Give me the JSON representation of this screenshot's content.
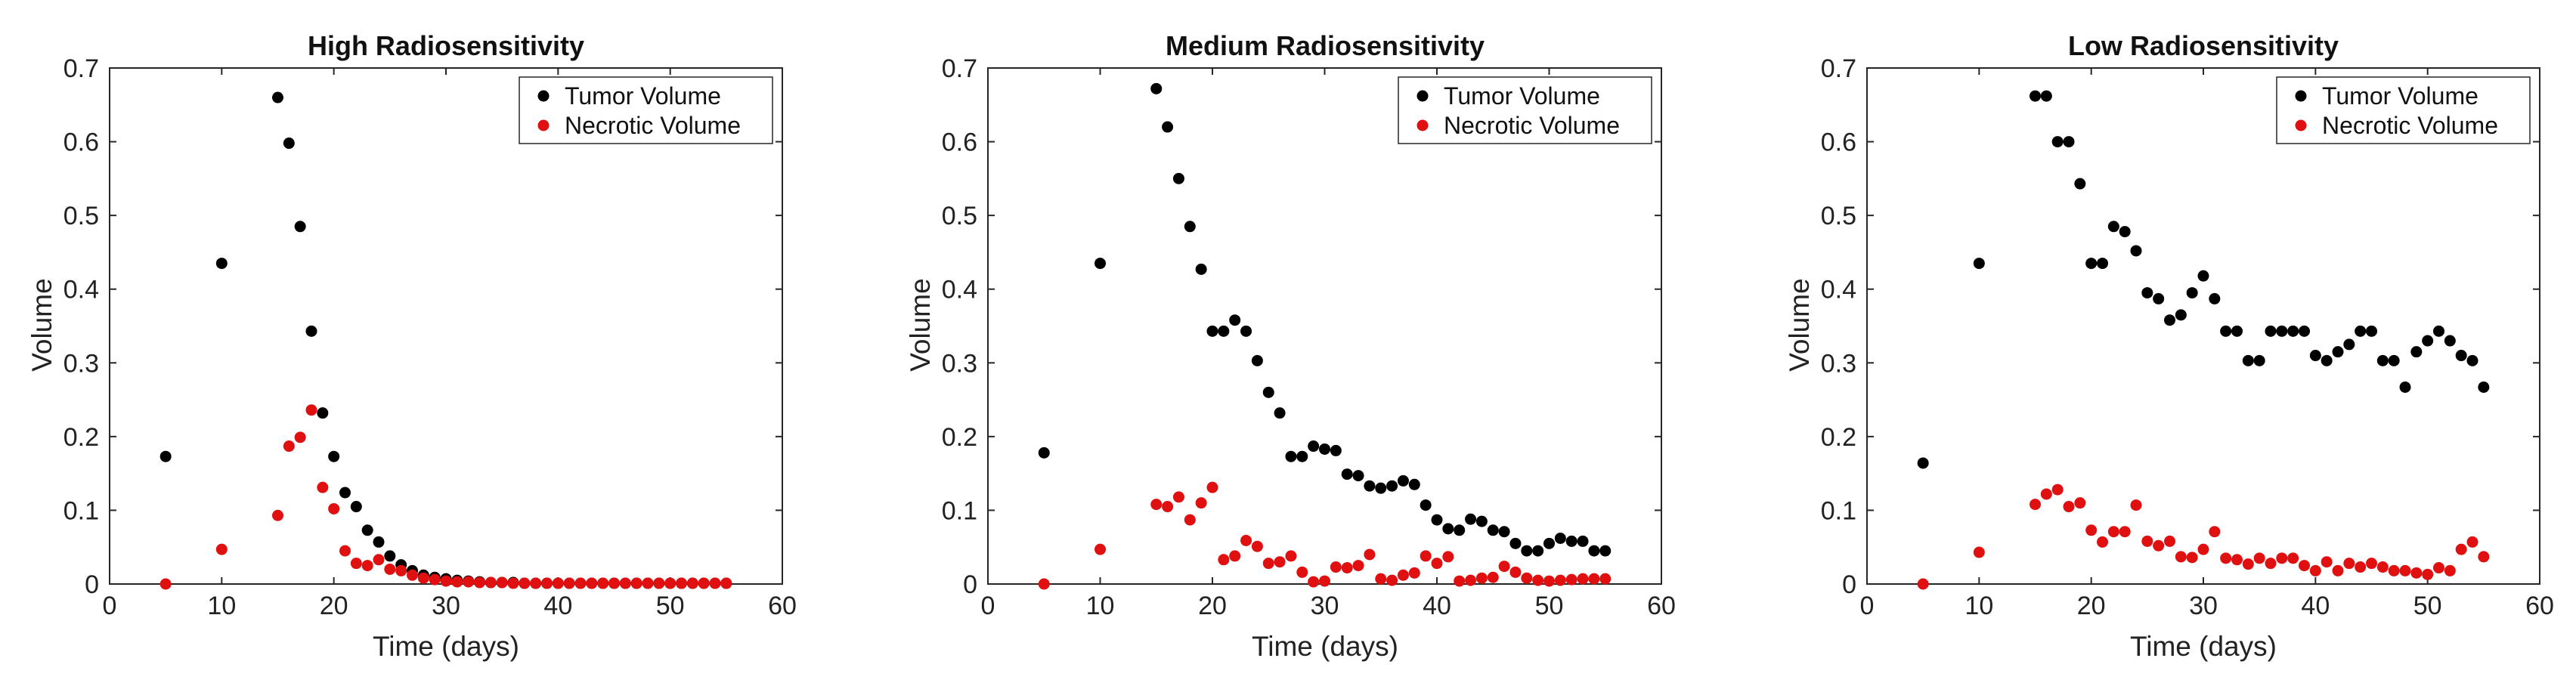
{
  "colors": {
    "tumor": "#000000",
    "necrotic": "#e01010",
    "axis": "#262626"
  },
  "chart_data": [
    {
      "type": "scatter",
      "title": "High Radiosensitivity",
      "xlabel": "Time (days)",
      "ylabel": "Volume",
      "xlim": [
        0,
        60
      ],
      "ylim": [
        0,
        0.7
      ],
      "xticks": [
        "0",
        "10",
        "20",
        "30",
        "40",
        "50",
        "60"
      ],
      "yticks": [
        "0",
        "0.1",
        "0.2",
        "0.3",
        "0.4",
        "0.5",
        "0.6",
        "0.7"
      ],
      "grid": false,
      "legend": "top-right",
      "series": [
        {
          "name": "Tumor Volume",
          "color": "#000000",
          "x": [
            5,
            10,
            15,
            16,
            17,
            18,
            19,
            20,
            21,
            22,
            23,
            24,
            25,
            26,
            27,
            28,
            29,
            30,
            31,
            32,
            33,
            34,
            35,
            36,
            37,
            38,
            39,
            40,
            41,
            42,
            43,
            44,
            45,
            46,
            47,
            48,
            49,
            50,
            51,
            52,
            53,
            54,
            55
          ],
          "y": [
            0.173,
            0.435,
            0.66,
            0.598,
            0.485,
            0.343,
            0.232,
            0.173,
            0.124,
            0.105,
            0.073,
            0.057,
            0.038,
            0.026,
            0.018,
            0.012,
            0.009,
            0.007,
            0.005,
            0.004,
            0.003,
            0.002,
            0.002,
            0.002,
            0.001,
            0.001,
            0.001,
            0.001,
            0.001,
            0.001,
            0.001,
            0.001,
            0.001,
            0.001,
            0.001,
            0.001,
            0.001,
            0.001,
            0.001,
            0.001,
            0.001,
            0.001,
            0.001
          ]
        },
        {
          "name": "Necrotic Volume",
          "color": "#e01010",
          "x": [
            5,
            10,
            15,
            16,
            17,
            18,
            19,
            20,
            21,
            22,
            23,
            24,
            25,
            26,
            27,
            28,
            29,
            30,
            31,
            32,
            33,
            34,
            35,
            36,
            37,
            38,
            39,
            40,
            41,
            42,
            43,
            44,
            45,
            46,
            47,
            48,
            49,
            50,
            51,
            52,
            53,
            54,
            55
          ],
          "y": [
            0.0,
            0.047,
            0.093,
            0.187,
            0.199,
            0.236,
            0.131,
            0.102,
            0.045,
            0.028,
            0.025,
            0.033,
            0.02,
            0.018,
            0.012,
            0.008,
            0.006,
            0.004,
            0.003,
            0.003,
            0.002,
            0.002,
            0.002,
            0.001,
            0.001,
            0.001,
            0.001,
            0.001,
            0.001,
            0.001,
            0.001,
            0.001,
            0.001,
            0.001,
            0.001,
            0.001,
            0.001,
            0.001,
            0.001,
            0.001,
            0.001,
            0.001,
            0.001
          ]
        }
      ]
    },
    {
      "type": "scatter",
      "title": "Medium Radiosensitivity",
      "xlabel": "Time (days)",
      "ylabel": "Volume",
      "xlim": [
        0,
        60
      ],
      "ylim": [
        0,
        0.7
      ],
      "xticks": [
        "0",
        "10",
        "20",
        "30",
        "40",
        "50",
        "60"
      ],
      "yticks": [
        "0",
        "0.1",
        "0.2",
        "0.3",
        "0.4",
        "0.5",
        "0.6",
        "0.7"
      ],
      "grid": false,
      "legend": "top-right",
      "series": [
        {
          "name": "Tumor Volume",
          "color": "#000000",
          "x": [
            5,
            10,
            15,
            16,
            17,
            18,
            19,
            20,
            21,
            22,
            23,
            24,
            25,
            26,
            27,
            28,
            29,
            30,
            31,
            32,
            33,
            34,
            35,
            36,
            37,
            38,
            39,
            40,
            41,
            42,
            43,
            44,
            45,
            46,
            47,
            48,
            49,
            50,
            51,
            52,
            53,
            54,
            55
          ],
          "y": [
            0.178,
            0.435,
            0.672,
            0.62,
            0.55,
            0.485,
            0.427,
            0.343,
            0.343,
            0.358,
            0.343,
            0.303,
            0.26,
            0.232,
            0.173,
            0.173,
            0.187,
            0.183,
            0.181,
            0.149,
            0.147,
            0.133,
            0.13,
            0.133,
            0.14,
            0.135,
            0.107,
            0.087,
            0.075,
            0.073,
            0.088,
            0.085,
            0.073,
            0.071,
            0.055,
            0.045,
            0.045,
            0.055,
            0.062,
            0.058,
            0.058,
            0.045,
            0.045
          ]
        },
        {
          "name": "Necrotic Volume",
          "color": "#e01010",
          "x": [
            5,
            10,
            15,
            16,
            17,
            18,
            19,
            20,
            21,
            22,
            23,
            24,
            25,
            26,
            27,
            28,
            29,
            30,
            31,
            32,
            33,
            34,
            35,
            36,
            37,
            38,
            39,
            40,
            41,
            42,
            43,
            44,
            45,
            46,
            47,
            48,
            49,
            50,
            51,
            52,
            53,
            54,
            55
          ],
          "y": [
            0.0,
            0.047,
            0.108,
            0.105,
            0.118,
            0.087,
            0.11,
            0.131,
            0.033,
            0.038,
            0.059,
            0.051,
            0.028,
            0.03,
            0.038,
            0.016,
            0.003,
            0.004,
            0.023,
            0.022,
            0.025,
            0.04,
            0.007,
            0.005,
            0.012,
            0.015,
            0.038,
            0.028,
            0.037,
            0.004,
            0.005,
            0.008,
            0.009,
            0.024,
            0.016,
            0.008,
            0.005,
            0.004,
            0.005,
            0.006,
            0.007,
            0.007,
            0.007
          ]
        }
      ]
    },
    {
      "type": "scatter",
      "title": "Low Radiosensitivity",
      "xlabel": "Time (days)",
      "ylabel": "Volume",
      "xlim": [
        0,
        60
      ],
      "ylim": [
        0,
        0.7
      ],
      "xticks": [
        "0",
        "10",
        "20",
        "30",
        "40",
        "50",
        "60"
      ],
      "yticks": [
        "0",
        "0.1",
        "0.2",
        "0.3",
        "0.4",
        "0.5",
        "0.6",
        "0.7"
      ],
      "grid": false,
      "legend": "top-right",
      "series": [
        {
          "name": "Tumor Volume",
          "color": "#000000",
          "x": [
            5,
            10,
            15,
            16,
            17,
            18,
            19,
            20,
            21,
            22,
            23,
            24,
            25,
            26,
            27,
            28,
            29,
            30,
            31,
            32,
            33,
            34,
            35,
            36,
            37,
            38,
            39,
            40,
            41,
            42,
            43,
            44,
            45,
            46,
            47,
            48,
            49,
            50,
            51,
            52,
            53,
            54,
            55
          ],
          "y": [
            0.164,
            0.435,
            0.662,
            0.662,
            0.6,
            0.6,
            0.543,
            0.435,
            0.435,
            0.485,
            0.478,
            0.452,
            0.395,
            0.387,
            0.358,
            0.365,
            0.395,
            0.418,
            0.387,
            0.343,
            0.343,
            0.303,
            0.303,
            0.343,
            0.343,
            0.343,
            0.343,
            0.31,
            0.303,
            0.315,
            0.325,
            0.343,
            0.343,
            0.303,
            0.303,
            0.267,
            0.315,
            0.33,
            0.343,
            0.33,
            0.31,
            0.303,
            0.267
          ]
        },
        {
          "name": "Necrotic Volume",
          "color": "#e01010",
          "x": [
            5,
            10,
            15,
            16,
            17,
            18,
            19,
            20,
            21,
            22,
            23,
            24,
            25,
            26,
            27,
            28,
            29,
            30,
            31,
            32,
            33,
            34,
            35,
            36,
            37,
            38,
            39,
            40,
            41,
            42,
            43,
            44,
            45,
            46,
            47,
            48,
            49,
            50,
            51,
            52,
            53,
            54,
            55
          ],
          "y": [
            0.0,
            0.043,
            0.108,
            0.122,
            0.128,
            0.105,
            0.11,
            0.073,
            0.057,
            0.071,
            0.071,
            0.107,
            0.058,
            0.052,
            0.058,
            0.037,
            0.036,
            0.047,
            0.071,
            0.035,
            0.033,
            0.027,
            0.035,
            0.028,
            0.035,
            0.035,
            0.025,
            0.018,
            0.03,
            0.018,
            0.028,
            0.023,
            0.028,
            0.023,
            0.018,
            0.018,
            0.015,
            0.013,
            0.022,
            0.018,
            0.047,
            0.057,
            0.037
          ]
        }
      ]
    }
  ]
}
